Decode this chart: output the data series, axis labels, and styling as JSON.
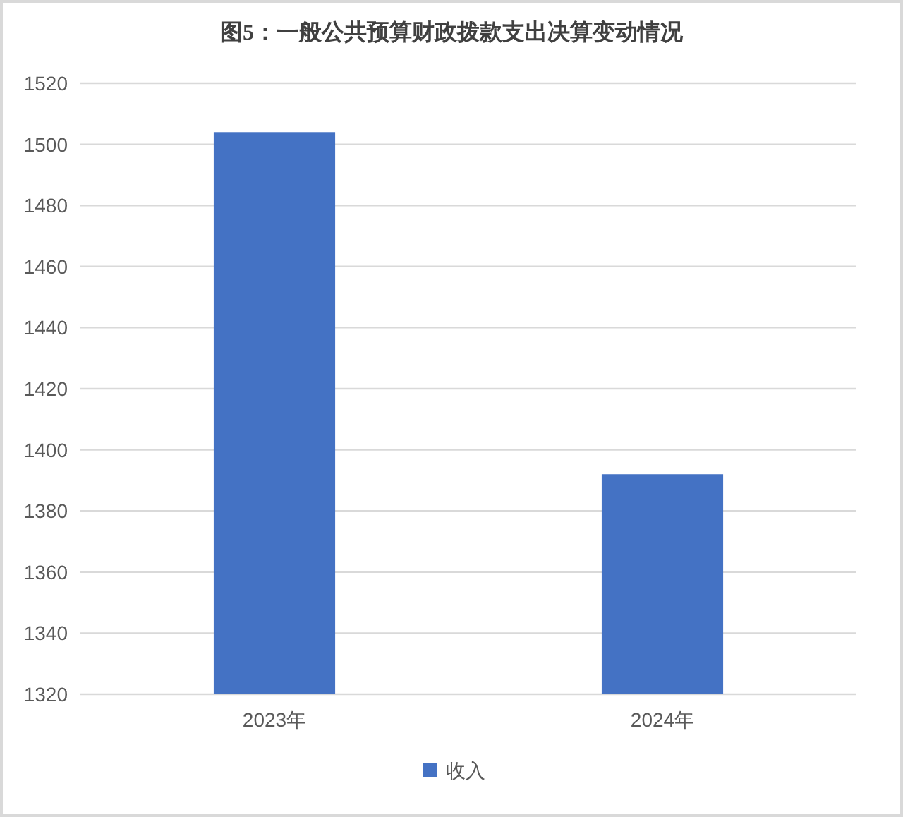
{
  "chart_data": {
    "type": "bar",
    "title": "图5：一般公共预算财政拨款支出决算变动情况",
    "categories": [
      "2023年",
      "2024年"
    ],
    "series": [
      {
        "name": "收入",
        "color": "#4472c4",
        "values": [
          1504,
          1392
        ]
      }
    ],
    "ylim": [
      1320,
      1520
    ],
    "yticks": [
      1320,
      1340,
      1360,
      1380,
      1400,
      1420,
      1440,
      1460,
      1480,
      1500,
      1520
    ],
    "grid": "y",
    "legend": "bottom"
  }
}
